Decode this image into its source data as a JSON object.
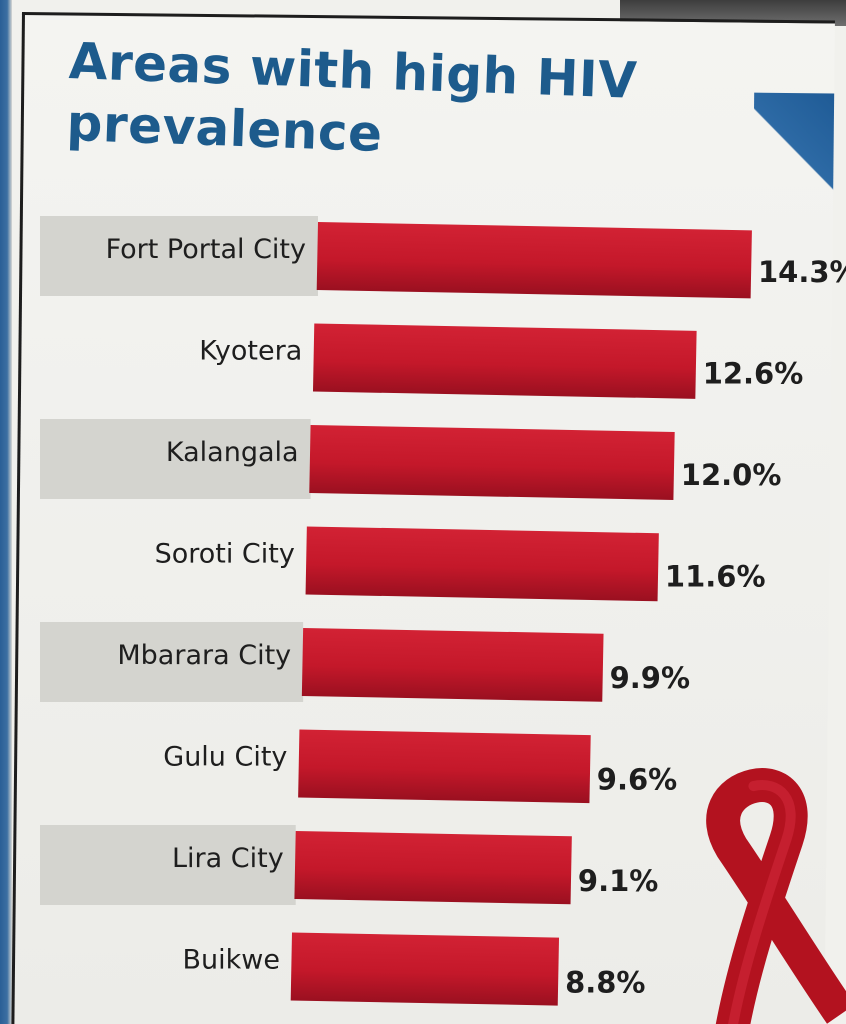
{
  "colors": {
    "bar": "#c4182a",
    "bar_dark": "#8e0f1c",
    "title": "#1d5b8c",
    "band": "#d4d4cf",
    "ribbon": "#b3121f"
  },
  "icons": {
    "ribbon": "awareness-ribbon-icon"
  },
  "chart_data": {
    "type": "bar",
    "orientation": "horizontal",
    "title": "Areas with high HIV prevalence",
    "categories": [
      "Fort Portal City",
      "Kyotera",
      "Kalangala",
      "Soroti City",
      "Mbarara City",
      "Gulu City",
      "Lira City",
      "Buikwe"
    ],
    "values": [
      14.3,
      12.6,
      12.0,
      11.6,
      9.9,
      9.6,
      9.1,
      8.8
    ],
    "value_labels": [
      "14.3%",
      "12.6%",
      "12.0%",
      "11.6%",
      "9.9%",
      "9.6%",
      "9.1%",
      "8.8%"
    ],
    "unit": "%",
    "xlim": [
      0,
      14.3
    ],
    "grid": false,
    "legend": "none"
  }
}
